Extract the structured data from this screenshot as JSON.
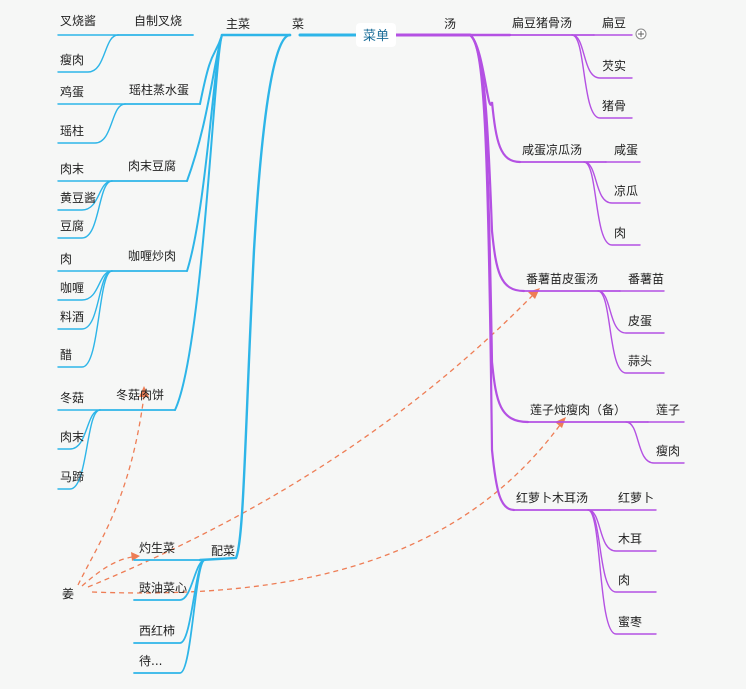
{
  "root": "菜单",
  "left": {
    "title": "菜",
    "main": {
      "title": "主菜",
      "dishes": [
        {
          "name": "自制叉烧",
          "items": [
            "叉烧酱",
            "瘦肉"
          ]
        },
        {
          "name": "瑶柱蒸水蛋",
          "items": [
            "鸡蛋",
            "瑶柱"
          ]
        },
        {
          "name": "肉末豆腐",
          "items": [
            "肉末",
            "黄豆酱",
            "豆腐"
          ]
        },
        {
          "name": "咖喱炒肉",
          "items": [
            "肉",
            "咖喱",
            "料酒",
            "醋"
          ]
        },
        {
          "name": "冬菇肉饼",
          "items": [
            "冬菇",
            "肉末",
            "马蹄"
          ]
        }
      ]
    },
    "side": {
      "title": "配菜",
      "dishes": [
        "灼生菜",
        "豉油菜心",
        "西红柿",
        "待..."
      ]
    },
    "floating": "姜"
  },
  "right": {
    "title": "汤",
    "soups": [
      {
        "name": "扁豆猪骨汤",
        "items": [
          "扁豆",
          "芡实",
          "猪骨"
        ]
      },
      {
        "name": "咸蛋凉瓜汤",
        "items": [
          "咸蛋",
          "凉瓜",
          "肉"
        ]
      },
      {
        "name": "番薯苗皮蛋汤",
        "items": [
          "番薯苗",
          "皮蛋",
          "蒜头"
        ]
      },
      {
        "name": "莲子炖瘦肉（备）",
        "items": [
          "莲子",
          "瘦肉"
        ]
      },
      {
        "name": "红萝卜木耳汤",
        "items": [
          "红萝卜",
          "木耳",
          "肉",
          "蜜枣"
        ]
      }
    ]
  },
  "colors": {
    "left": "#2db5e8",
    "right": "#b451e3",
    "relation": "#ee7d55",
    "root_text": "#1c6e99"
  },
  "icons": {
    "expand": "plus-circle-icon"
  }
}
